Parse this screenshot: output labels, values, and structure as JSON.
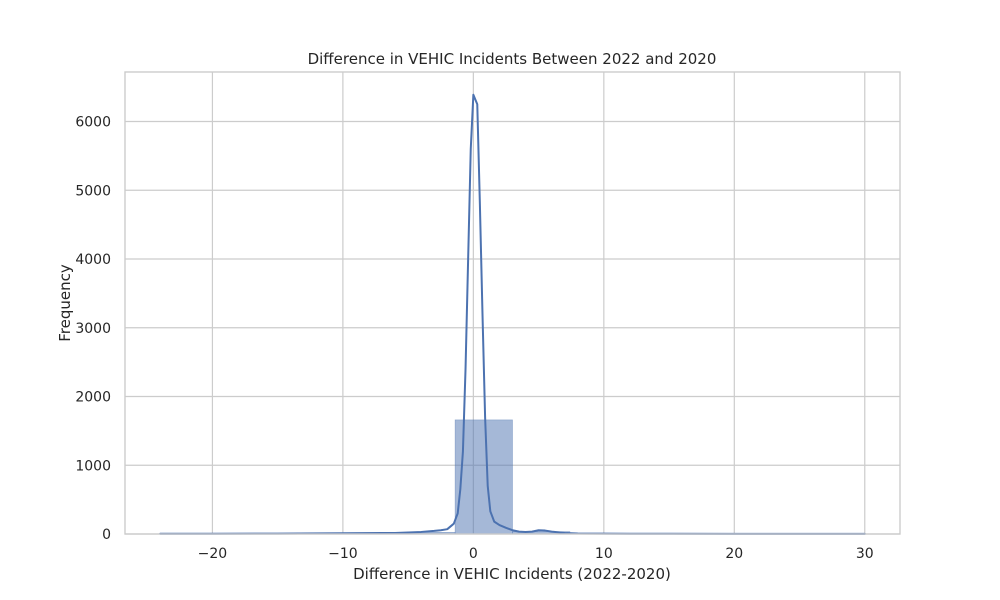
{
  "chart_data": {
    "type": "histogram",
    "title": "Difference in VEHIC Incidents Between 2022 and 2020",
    "xlabel": "Difference in VEHIC Incidents (2022-2020)",
    "ylabel": "Frequency",
    "xlim": [
      -26.7,
      32.7
    ],
    "ylim": [
      0,
      6720
    ],
    "grid": true,
    "xticks": [
      -20,
      -10,
      0,
      10,
      20,
      30
    ],
    "xtick_labels": [
      "−20",
      "−10",
      "0",
      "10",
      "20",
      "30"
    ],
    "yticks": [
      0,
      1000,
      2000,
      3000,
      4000,
      5000,
      6000
    ],
    "ytick_labels": [
      "0",
      "1000",
      "2000",
      "3000",
      "4000",
      "5000",
      "6000"
    ],
    "bar_color": "#4c72b0",
    "bar_opacity": 0.5,
    "line_color": "#4c72b0",
    "bins": [
      {
        "x0": -24.0,
        "x1": -19.6,
        "count": 5
      },
      {
        "x0": -19.6,
        "x1": -15.2,
        "count": 3
      },
      {
        "x0": -15.2,
        "x1": -10.8,
        "count": 8
      },
      {
        "x0": -10.8,
        "x1": -6.4,
        "count": 10
      },
      {
        "x0": -6.4,
        "x1": -1.4,
        "count": 25
      },
      {
        "x0": -1.4,
        "x1": 3.0,
        "count": 1660
      },
      {
        "x0": 3.0,
        "x1": 7.4,
        "count": 35
      },
      {
        "x0": 7.4,
        "x1": 11.8,
        "count": 8
      },
      {
        "x0": 11.8,
        "x1": 16.2,
        "count": 5
      },
      {
        "x0": 16.2,
        "x1": 20.6,
        "count": 3
      },
      {
        "x0": 20.6,
        "x1": 25.0,
        "count": 2
      },
      {
        "x0": 25.0,
        "x1": 30.0,
        "count": 4
      }
    ],
    "kde": {
      "x": [
        -24,
        -20,
        -15,
        -10,
        -6,
        -4,
        -3,
        -2.5,
        -2,
        -1.5,
        -1.2,
        -1.0,
        -0.8,
        -0.6,
        -0.4,
        -0.2,
        0.0,
        0.3,
        0.5,
        0.7,
        0.9,
        1.1,
        1.3,
        1.6,
        2.0,
        2.5,
        3.0,
        3.5,
        4.0,
        4.5,
        5.0,
        5.5,
        6.0,
        7.0,
        8.0,
        10.0,
        12.0,
        15.0,
        20.0,
        25.0,
        30.0
      ],
      "y": [
        3,
        4,
        6,
        10,
        15,
        30,
        45,
        55,
        70,
        150,
        300,
        650,
        1200,
        2400,
        4000,
        5600,
        6390,
        6250,
        4800,
        3200,
        1700,
        700,
        330,
        180,
        130,
        90,
        55,
        35,
        30,
        35,
        55,
        50,
        35,
        15,
        8,
        5,
        4,
        3,
        2,
        2,
        2
      ]
    }
  }
}
